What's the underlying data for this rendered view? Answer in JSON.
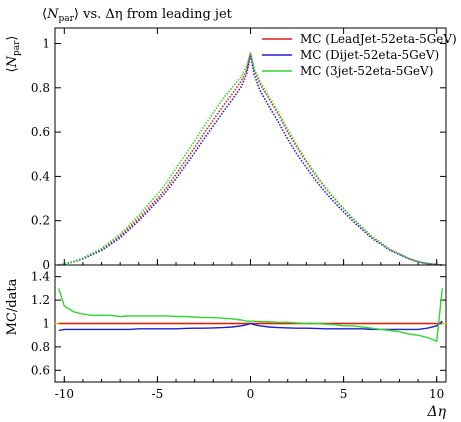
{
  "chart_data": {
    "type": "line",
    "title": "⟨N_par⟩ vs. Δη from leading jet",
    "title_parts": {
      "open": "⟨",
      "var": "N",
      "sub": "par",
      "close": "⟩",
      "rest": " vs. Δη from leading jet"
    },
    "xlabel": "Δη",
    "ylabel_main": "⟨N_par⟩",
    "ylabel_main_parts": {
      "open": "⟨",
      "var": "N",
      "sub": "par",
      "close": "⟩"
    },
    "ylabel_ratio": "MC/data",
    "xlim": [
      -10.5,
      10.5
    ],
    "ylim_main": [
      0,
      1.07
    ],
    "ylim_ratio": [
      0.5,
      1.5
    ],
    "x_ticks": [
      -10,
      -5,
      0,
      5,
      10
    ],
    "x_tick_labels": [
      "-10",
      "-5",
      "0",
      "5",
      "10"
    ],
    "y_ticks_main": [
      0,
      0.2,
      0.4,
      0.6,
      0.8,
      1
    ],
    "y_tick_labels_main": [
      "0",
      "0.2",
      "0.4",
      "0.6",
      "0.8",
      "1"
    ],
    "y_ticks_ratio": [
      0.6,
      0.8,
      1,
      1.2,
      1.4
    ],
    "y_tick_labels_ratio": [
      "0.6",
      "0.8",
      "1",
      "1.2",
      "1.4"
    ],
    "legend_position": "top-right",
    "x": [
      -10.3,
      -10,
      -9.5,
      -9,
      -8.5,
      -8,
      -7.5,
      -7,
      -6.5,
      -6,
      -5.5,
      -5,
      -4.5,
      -4,
      -3.5,
      -3,
      -2.5,
      -2,
      -1.5,
      -1,
      -0.5,
      -0.2,
      0,
      0.2,
      0.5,
      1,
      1.5,
      2,
      2.5,
      3,
      3.5,
      4,
      4.5,
      5,
      5.5,
      6,
      6.5,
      7,
      7.5,
      8,
      8.5,
      9,
      9.5,
      10,
      10.3
    ],
    "series": [
      {
        "name": "MC (LeadJet-52eta-5GeV)",
        "color": "#e41a1c",
        "values": [
          0.0,
          0.005,
          0.015,
          0.03,
          0.05,
          0.07,
          0.1,
          0.13,
          0.17,
          0.21,
          0.255,
          0.3,
          0.35,
          0.41,
          0.47,
          0.53,
          0.595,
          0.655,
          0.715,
          0.77,
          0.83,
          0.88,
          0.955,
          0.88,
          0.82,
          0.75,
          0.68,
          0.6,
          0.53,
          0.465,
          0.405,
          0.35,
          0.3,
          0.255,
          0.21,
          0.17,
          0.13,
          0.1,
          0.07,
          0.05,
          0.03,
          0.015,
          0.007,
          0.002,
          0.0
        ],
        "ratio": [
          1.0,
          1.0,
          1.0,
          1.0,
          1.0,
          1.0,
          1.0,
          1.0,
          1.0,
          1.0,
          1.0,
          1.0,
          1.0,
          1.0,
          1.0,
          1.0,
          1.0,
          1.0,
          1.0,
          1.0,
          1.0,
          1.0,
          1.0,
          1.0,
          1.0,
          1.0,
          1.0,
          1.0,
          1.0,
          1.0,
          1.0,
          1.0,
          1.0,
          1.0,
          1.0,
          1.0,
          1.0,
          1.0,
          1.0,
          1.0,
          1.0,
          1.0,
          1.0,
          1.0,
          1.0
        ]
      },
      {
        "name": "MC (Dijet-52eta-5GeV)",
        "color": "#1f1fd6",
        "values": [
          0.0,
          0.005,
          0.014,
          0.028,
          0.047,
          0.066,
          0.094,
          0.123,
          0.161,
          0.2,
          0.243,
          0.287,
          0.334,
          0.39,
          0.448,
          0.507,
          0.57,
          0.628,
          0.688,
          0.744,
          0.805,
          0.865,
          0.95,
          0.86,
          0.79,
          0.715,
          0.645,
          0.568,
          0.5,
          0.44,
          0.382,
          0.33,
          0.283,
          0.24,
          0.198,
          0.16,
          0.122,
          0.094,
          0.066,
          0.047,
          0.028,
          0.014,
          0.006,
          0.002,
          0.0
        ],
        "ratio": [
          0.94,
          0.95,
          0.95,
          0.95,
          0.95,
          0.95,
          0.95,
          0.95,
          0.95,
          0.955,
          0.955,
          0.955,
          0.955,
          0.955,
          0.958,
          0.96,
          0.96,
          0.962,
          0.965,
          0.97,
          0.98,
          0.99,
          1.0,
          0.99,
          0.98,
          0.97,
          0.965,
          0.962,
          0.96,
          0.96,
          0.958,
          0.955,
          0.955,
          0.955,
          0.955,
          0.955,
          0.95,
          0.95,
          0.95,
          0.95,
          0.95,
          0.95,
          0.96,
          0.98,
          1.02
        ]
      },
      {
        "name": "MC (3jet-52eta-5GeV)",
        "color": "#2ed82e",
        "values": [
          0.0,
          0.005,
          0.016,
          0.032,
          0.053,
          0.075,
          0.107,
          0.139,
          0.181,
          0.224,
          0.272,
          0.32,
          0.373,
          0.436,
          0.498,
          0.56,
          0.626,
          0.687,
          0.748,
          0.8,
          0.85,
          0.9,
          0.96,
          0.885,
          0.83,
          0.76,
          0.69,
          0.612,
          0.54,
          0.472,
          0.41,
          0.353,
          0.302,
          0.256,
          0.21,
          0.169,
          0.129,
          0.099,
          0.069,
          0.049,
          0.029,
          0.014,
          0.006,
          0.002,
          0.0
        ],
        "ratio": [
          1.3,
          1.15,
          1.1,
          1.08,
          1.07,
          1.07,
          1.07,
          1.06,
          1.065,
          1.065,
          1.065,
          1.065,
          1.065,
          1.06,
          1.06,
          1.055,
          1.05,
          1.05,
          1.045,
          1.04,
          1.03,
          1.02,
          1.02,
          1.02,
          1.015,
          1.015,
          1.01,
          1.01,
          1.005,
          1.0,
          1.0,
          0.995,
          0.99,
          0.98,
          0.98,
          0.97,
          0.96,
          0.95,
          0.94,
          0.93,
          0.91,
          0.9,
          0.88,
          0.85,
          1.3
        ]
      }
    ]
  }
}
